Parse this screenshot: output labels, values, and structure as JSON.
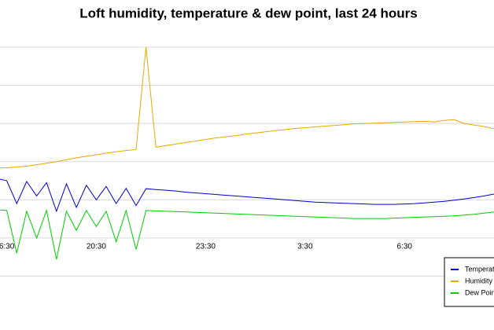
{
  "chart_data": {
    "type": "line",
    "title": "Loft humidity, temperature & dew point, last 24 hours",
    "categories": [
      null,
      "6:30",
      null,
      null,
      null,
      null,
      null,
      null,
      null,
      null,
      "20:30",
      null,
      null,
      null,
      null,
      null,
      null,
      null,
      null,
      null,
      null,
      "23:30",
      null,
      null,
      null,
      null,
      null,
      null,
      null,
      null,
      null,
      "3:30",
      null,
      null,
      null,
      null,
      null,
      null,
      null,
      null,
      null,
      "6:30",
      null,
      null,
      null,
      null,
      null,
      null,
      null,
      null,
      null
    ],
    "ylim": [
      -1,
      6
    ],
    "yticks": [
      0,
      1,
      2,
      3,
      4,
      5,
      6
    ],
    "grid": true,
    "legend": "bottom-right",
    "series": [
      {
        "name": "Temperature",
        "color": "#0000cc",
        "values": [
          2.56,
          2.5,
          1.9,
          2.48,
          2.1,
          2.45,
          1.7,
          2.42,
          1.8,
          2.38,
          2.0,
          2.35,
          1.9,
          2.3,
          1.85,
          2.29,
          2.27,
          2.25,
          2.23,
          2.2,
          2.18,
          2.16,
          2.14,
          2.12,
          2.1,
          2.08,
          2.06,
          2.04,
          2.02,
          2.0,
          1.98,
          1.96,
          1.94,
          1.93,
          1.92,
          1.91,
          1.9,
          1.89,
          1.88,
          1.88,
          1.88,
          1.89,
          1.9,
          1.92,
          1.94,
          1.96,
          1.99,
          2.02,
          2.06,
          2.1,
          2.15
        ]
      },
      {
        "name": "Humidity",
        "color": "#e6a800",
        "values": [
          2.83,
          2.84,
          2.86,
          2.88,
          2.92,
          2.96,
          3.0,
          3.05,
          3.1,
          3.14,
          3.18,
          3.22,
          3.26,
          3.29,
          3.32,
          6.0,
          3.38,
          3.42,
          3.46,
          3.5,
          3.54,
          3.58,
          3.62,
          3.65,
          3.68,
          3.72,
          3.75,
          3.78,
          3.81,
          3.84,
          3.87,
          3.89,
          3.91,
          3.93,
          3.95,
          3.97,
          3.99,
          4.0,
          4.01,
          4.02,
          4.03,
          4.04,
          4.05,
          4.06,
          4.04,
          4.08,
          4.1,
          4.0,
          3.96,
          3.92,
          3.86
        ]
      },
      {
        "name": "Dew Point",
        "color": "#00cc00",
        "values": [
          1.74,
          1.72,
          0.6,
          1.7,
          1.0,
          1.72,
          0.44,
          1.7,
          1.2,
          1.72,
          1.3,
          1.7,
          0.9,
          1.72,
          0.7,
          1.72,
          1.71,
          1.7,
          1.69,
          1.68,
          1.67,
          1.66,
          1.65,
          1.64,
          1.63,
          1.62,
          1.61,
          1.6,
          1.59,
          1.58,
          1.57,
          1.56,
          1.55,
          1.54,
          1.53,
          1.52,
          1.51,
          1.51,
          1.51,
          1.51,
          1.52,
          1.53,
          1.54,
          1.55,
          1.56,
          1.57,
          1.58,
          1.6,
          1.62,
          1.65,
          1.68
        ]
      }
    ]
  }
}
